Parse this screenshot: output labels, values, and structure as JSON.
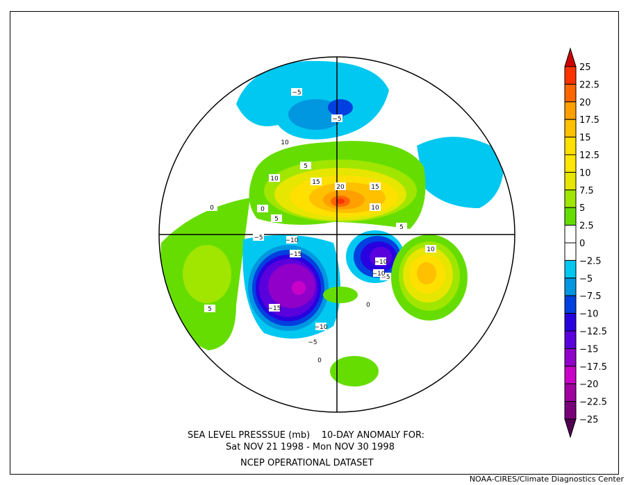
{
  "title": {
    "line1": "SEA LEVEL PRESSSUE (mb)    10-DAY ANOMALY FOR:",
    "line2": "Sat NOV 21 1998 - Mon NOV 30 1998",
    "line3": "NCEP OPERATIONAL DATASET"
  },
  "credit": "NOAA-CIRES/Climate Diagnostics Center",
  "colorbar": {
    "labels": [
      "25",
      "22.5",
      "20",
      "17.5",
      "15",
      "12.5",
      "10",
      "7.5",
      "5",
      "2.5",
      "0",
      "-2.5",
      "-5",
      "-7.5",
      "-10",
      "-12.5",
      "-15",
      "-17.5",
      "-20",
      "-22.5",
      "-25"
    ],
    "colors": [
      "#ff3300",
      "#ff6600",
      "#ffa000",
      "#ffc000",
      "#ffe000",
      "#ffe600",
      "#e6e600",
      "#a0e600",
      "#66dd00",
      "#ffffff",
      "#ffffff",
      "#00c8f0",
      "#0096e0",
      "#0040e0",
      "#2800e0",
      "#5a00dd",
      "#9000c8",
      "#c800c8",
      "#a000a0",
      "#780078"
    ],
    "over_color": "#cc0000",
    "under_color": "#500050"
  },
  "contour_labels": [
    "-5",
    "-5",
    "10",
    "5",
    "10",
    "15",
    "20",
    "15",
    "10",
    "5",
    "5",
    "-5",
    "-10",
    "-15",
    "-10",
    "-5",
    "-10",
    "10",
    "-15",
    "-10",
    "-5",
    "0",
    "5",
    "0",
    "0",
    "0"
  ]
}
